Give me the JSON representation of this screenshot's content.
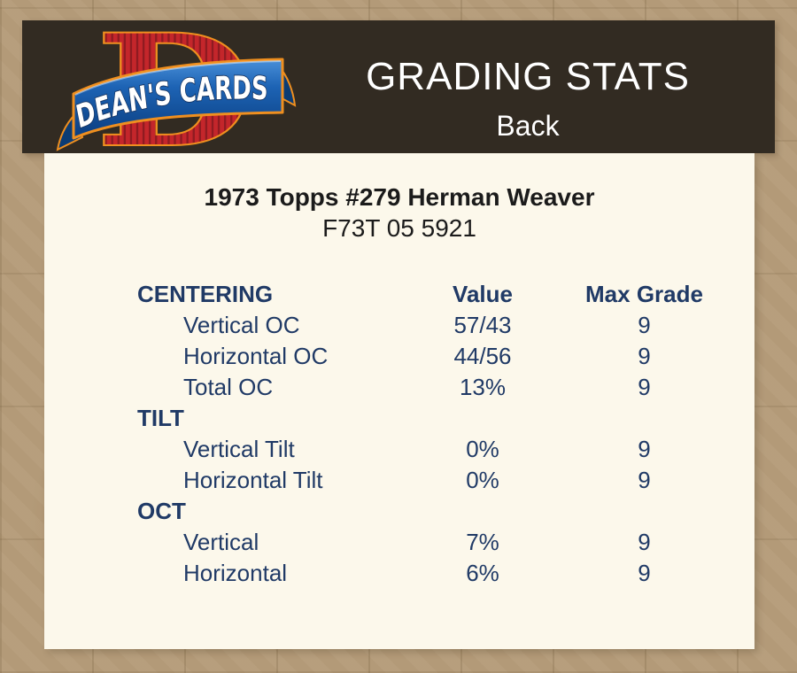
{
  "header": {
    "logo": {
      "monogram": "D",
      "ribbon_text": "DEAN'S CARDS"
    },
    "title": "GRADING STATS",
    "subtitle": "Back"
  },
  "card": {
    "title": "1973 Topps #279 Herman Weaver",
    "serial": "F73T 05 5921"
  },
  "table": {
    "headers": {
      "value": "Value",
      "max_grade": "Max Grade"
    },
    "sections": [
      {
        "title": "CENTERING",
        "rows": [
          {
            "label": "Vertical OC",
            "value": "57/43",
            "max_grade": "9"
          },
          {
            "label": "Horizontal OC",
            "value": "44/56",
            "max_grade": "9"
          },
          {
            "label": "Total OC",
            "value": "13%",
            "max_grade": "9"
          }
        ]
      },
      {
        "title": "TILT",
        "rows": [
          {
            "label": "Vertical Tilt",
            "value": "0%",
            "max_grade": "9"
          },
          {
            "label": "Horizontal Tilt",
            "value": "0%",
            "max_grade": "9"
          }
        ]
      },
      {
        "title": "OCT",
        "rows": [
          {
            "label": "Vertical",
            "value": "7%",
            "max_grade": "9"
          },
          {
            "label": "Horizontal",
            "value": "6%",
            "max_grade": "9"
          }
        ]
      }
    ]
  },
  "colors": {
    "page_background_tan": "#b39a78",
    "header_brown": "#322b22",
    "panel_cream": "#fcf8eb",
    "table_navy": "#203a66",
    "logo_red": "#c4262b",
    "logo_stripe_dark_red": "#8f1b21",
    "logo_orange_outline": "#ef8f1f",
    "logo_ribbon_blue": "#1d63b4",
    "header_text_white": "#ffffff"
  }
}
